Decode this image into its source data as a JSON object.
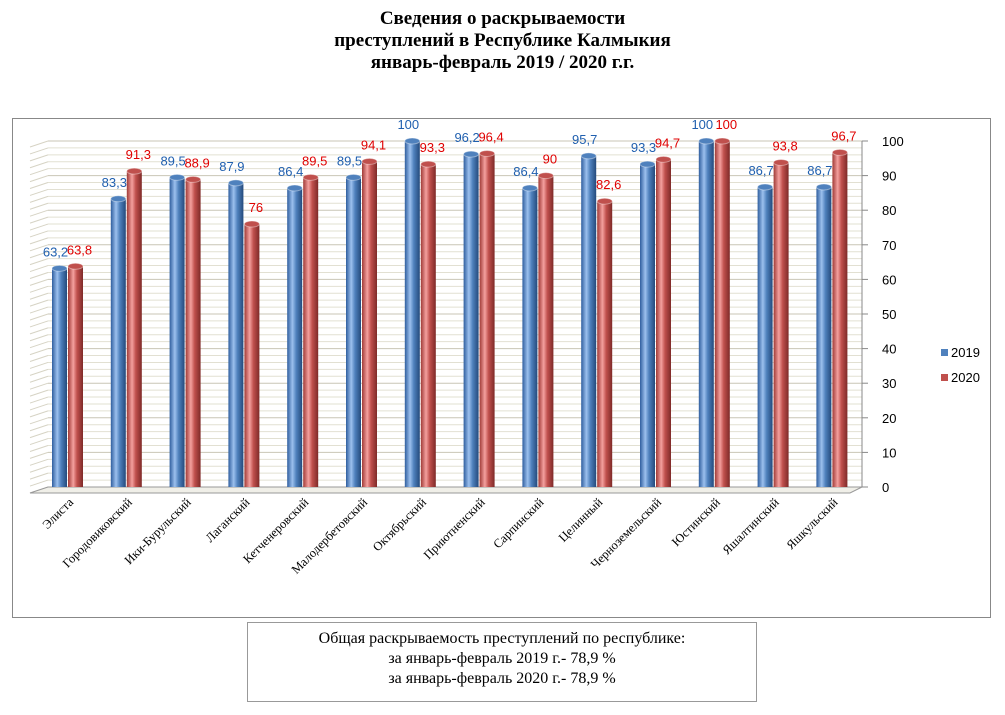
{
  "title": [
    "Сведения о раскрываемости",
    "преступлений  в  Республике Калмыкия",
    "январь-февраль  2019  /  2020 г.г."
  ],
  "chart_data": {
    "type": "bar",
    "title": "Сведения о раскрываемости преступлений в Республике Калмыкия январь-февраль 2019 / 2020 г.г.",
    "categories": [
      "Элиста",
      "Городовиковский",
      "Ики-Бурульский",
      "Лаганский",
      "Кетченеровский",
      "Малодербетовский",
      "Октябрьский",
      "Приютненский",
      "Сарпинский",
      "Целинный",
      "Черноземельский",
      "Юстинский",
      "Яшалтинский",
      "Яшкульский"
    ],
    "series": [
      {
        "name": "2019",
        "color": "#4F81BD",
        "label_color": "#1F5FAF",
        "values": [
          63.2,
          83.3,
          89.5,
          87.9,
          86.4,
          89.5,
          100,
          96.2,
          86.4,
          95.7,
          93.3,
          100,
          86.7,
          86.7
        ],
        "labels": [
          "63,2",
          "83,3",
          "89,5",
          "87,9",
          "86,4",
          "89,5",
          "100",
          "96,2",
          "86,4",
          "95,7",
          "93,3",
          "100",
          "86,7",
          "86,7"
        ]
      },
      {
        "name": "2020",
        "color": "#C0504D",
        "label_color": "#E00000",
        "values": [
          63.8,
          91.3,
          88.9,
          76,
          89.5,
          94.1,
          93.3,
          96.4,
          90,
          82.6,
          94.7,
          100,
          93.8,
          96.7
        ],
        "labels": [
          "63,8",
          "91,3",
          "88,9",
          "76",
          "89,5",
          "94,1",
          "93,3",
          "96,4",
          "90",
          "82,6",
          "94,7",
          "100",
          "93,8",
          "96,7"
        ]
      }
    ],
    "ylim": [
      0,
      100
    ],
    "yticks": [
      "0",
      "10",
      "20",
      "30",
      "40",
      "50",
      "60",
      "70",
      "80",
      "90",
      "100"
    ],
    "legend_position": "right",
    "grid": true
  },
  "summary": [
    "Общая раскрываемость преступлений  по республике:",
    "за январь-февраль 2019 г.- 78,9 %",
    "за январь-февраль 2020 г.- 78,9 %"
  ]
}
